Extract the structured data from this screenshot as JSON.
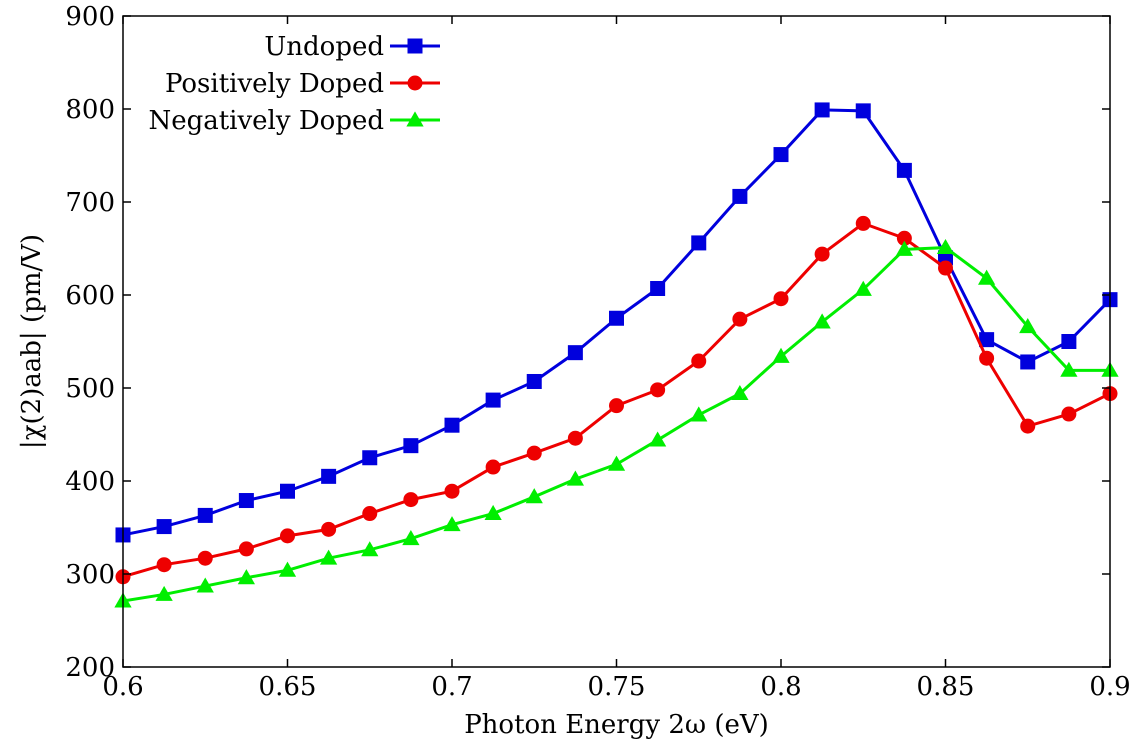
{
  "chart_data": {
    "type": "line",
    "xlabel": "Photon Energy 2ω (eV)",
    "ylabel": "|χ(2)aab| (pm/V)",
    "xlim": [
      0.6,
      0.9
    ],
    "ylim": [
      200,
      900
    ],
    "xticks": [
      "0.6",
      "0.65",
      "0.7",
      "0.75",
      "0.8",
      "0.85",
      "0.9"
    ],
    "yticks": [
      "200",
      "300",
      "400",
      "500",
      "600",
      "700",
      "800",
      "900"
    ],
    "legend_position": "top-left",
    "grid": false,
    "x": [
      0.6,
      0.6125,
      0.625,
      0.6375,
      0.65,
      0.6625,
      0.675,
      0.6875,
      0.7,
      0.7125,
      0.725,
      0.7375,
      0.75,
      0.7625,
      0.775,
      0.7875,
      0.8,
      0.8125,
      0.825,
      0.8375,
      0.85,
      0.8625,
      0.875,
      0.8875,
      0.9
    ],
    "series": [
      {
        "name": "Undoped",
        "color": "#0000dd",
        "marker": "square",
        "values": [
          342,
          351,
          363,
          379,
          389,
          405,
          425,
          438,
          460,
          487,
          507,
          538,
          575,
          607,
          656,
          706,
          751,
          799,
          798,
          734,
          640,
          552,
          528,
          550,
          595
        ]
      },
      {
        "name": "Positively Doped",
        "color": "#ee0000",
        "marker": "circle",
        "values": [
          297,
          310,
          317,
          327,
          341,
          348,
          365,
          380,
          389,
          415,
          430,
          446,
          481,
          498,
          529,
          574,
          596,
          644,
          677,
          661,
          629,
          532,
          459,
          472,
          494
        ]
      },
      {
        "name": "Negatively Doped",
        "color": "#00ee00",
        "marker": "triangle",
        "values": [
          271,
          278,
          287,
          296,
          304,
          317,
          326,
          338,
          353,
          365,
          383,
          402,
          418,
          444,
          471,
          494,
          534,
          571,
          606,
          649,
          651,
          618,
          566,
          519,
          519
        ]
      }
    ]
  }
}
